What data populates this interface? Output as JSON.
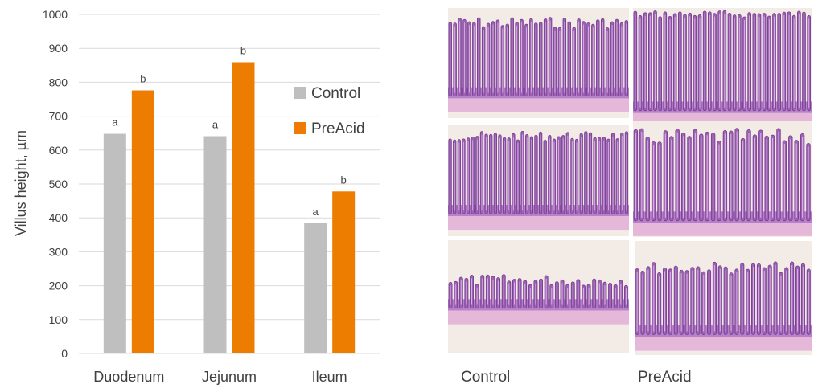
{
  "chart_data": {
    "type": "bar",
    "categories": [
      "Duodenum",
      "Jejunum",
      "Ileum"
    ],
    "series": [
      {
        "name": "Control",
        "values": [
          648,
          641,
          384
        ],
        "color": "#bfbfbf",
        "sig": [
          "a",
          "a",
          "a"
        ]
      },
      {
        "name": "PreAcid",
        "values": [
          776,
          859,
          478
        ],
        "color": "#ed7d00",
        "sig": [
          "b",
          "b",
          "b"
        ]
      }
    ],
    "ylabel": "Villus height, µm",
    "ylim": [
      0,
      1000
    ],
    "yticks": [
      0,
      100,
      200,
      300,
      400,
      500,
      600,
      700,
      800,
      900,
      1000
    ],
    "grid": true,
    "legend_position": "right"
  },
  "micrographs": {
    "captions": {
      "control": "Control",
      "preacid": "PreAcid"
    },
    "panels": [
      {
        "id": "control-duodenum",
        "group": "control"
      },
      {
        "id": "preacid-duodenum",
        "group": "preacid"
      },
      {
        "id": "control-jejunum",
        "group": "control"
      },
      {
        "id": "preacid-jejunum",
        "group": "preacid"
      },
      {
        "id": "control-ileum",
        "group": "control"
      },
      {
        "id": "preacid-ileum",
        "group": "preacid"
      }
    ],
    "colors": {
      "tissue": "#a160b6",
      "tissue_dark": "#6e3d8e",
      "base": "#b780c8",
      "background": "#f3ece6",
      "muscle": "#e5b8da"
    }
  }
}
